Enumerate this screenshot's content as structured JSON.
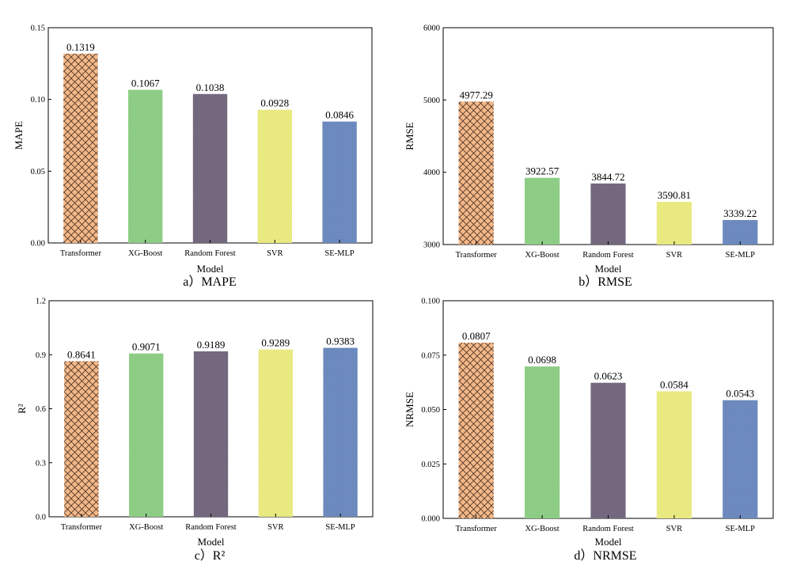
{
  "categories": [
    "Transformer",
    "XG-Boost",
    "Random Forest",
    "SVR",
    "SE-MLP"
  ],
  "colors": {
    "Transformer": "#f4b888",
    "Transformer_hatch": "#4a3428",
    "XG-Boost": "#92d08a",
    "Random Forest": "#776b82",
    "SVR": "#eded86",
    "SE-MLP": "#6f8cc0"
  },
  "chart_data": [
    {
      "id": "mape",
      "type": "bar",
      "caption": "a）MAPE",
      "xlabel": "Model",
      "ylabel": "MAPE",
      "ylim": [
        0,
        0.15
      ],
      "yticks": [
        "0.00",
        "0.05",
        "0.10",
        "0.15"
      ],
      "values": [
        0.1319,
        0.1067,
        0.1038,
        0.0928,
        0.0846
      ],
      "labels": [
        "0.1319",
        "0.1067",
        "0.1038",
        "0.0928",
        "0.0846"
      ]
    },
    {
      "id": "rmse",
      "type": "bar",
      "caption": "b）RMSE",
      "xlabel": "Model",
      "ylabel": "RMSE",
      "ylim": [
        3000,
        6000
      ],
      "yticks": [
        "3000",
        "4000",
        "5000",
        "6000"
      ],
      "values": [
        4977.29,
        3922.57,
        3844.72,
        3590.81,
        3339.22
      ],
      "labels": [
        "4977.29",
        "3922.57",
        "3844.72",
        "3590.81",
        "3339.22"
      ]
    },
    {
      "id": "r2",
      "type": "bar",
      "caption": "c）R²",
      "xlabel": "Model",
      "ylabel": "R²",
      "ylim": [
        0,
        1.2
      ],
      "yticks": [
        "0.0",
        "0.3",
        "0.6",
        "0.9",
        "1.2"
      ],
      "values": [
        0.8641,
        0.9071,
        0.9189,
        0.9289,
        0.9383
      ],
      "labels": [
        "0.8641",
        "0.9071",
        "0.9189",
        "0.9289",
        "0.9383"
      ]
    },
    {
      "id": "nrmse",
      "type": "bar",
      "caption": "d）NRMSE",
      "xlabel": "Model",
      "ylabel": "NRMSE",
      "ylim": [
        0,
        0.1
      ],
      "yticks": [
        "0.000",
        "0.025",
        "0.050",
        "0.075",
        "0.100"
      ],
      "values": [
        0.0807,
        0.0698,
        0.0623,
        0.0584,
        0.0543
      ],
      "labels": [
        "0.0807",
        "0.0698",
        "0.0623",
        "0.0584",
        "0.0543"
      ]
    }
  ]
}
